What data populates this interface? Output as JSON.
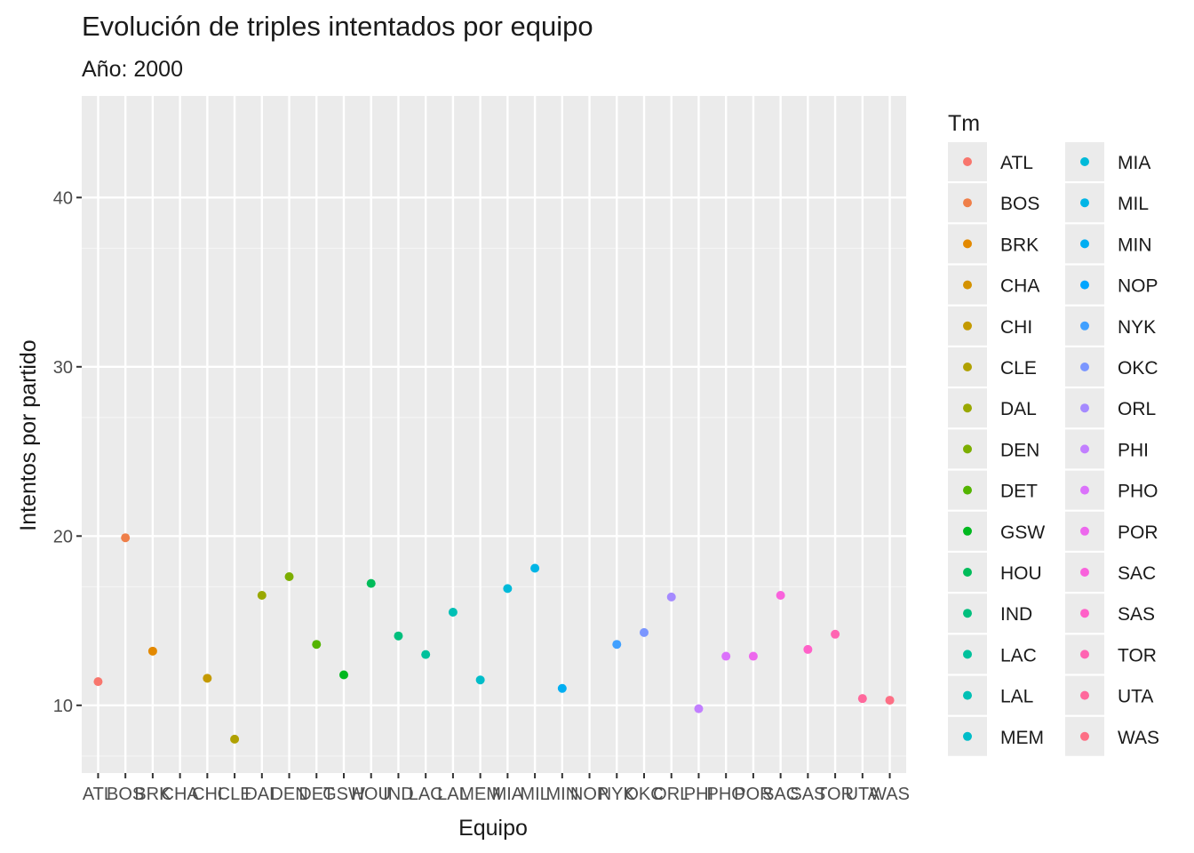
{
  "chart_data": {
    "type": "scatter",
    "title": "Evolución de triples intentados por equipo",
    "subtitle": "Año: 2000",
    "xlabel": "Equipo",
    "ylabel": "Intentos por partido",
    "ylim": [
      6,
      46
    ],
    "yticks": [
      10,
      20,
      30,
      40
    ],
    "grid": true,
    "legend_title": "Tm",
    "legend_position": "right",
    "categories": [
      "ATL",
      "BOS",
      "BRK",
      "CHA",
      "CHI",
      "CLE",
      "DAL",
      "DEN",
      "DET",
      "GSW",
      "HOU",
      "IND",
      "LAC",
      "LAL",
      "MEM",
      "MIA",
      "MIL",
      "MIN",
      "NOP",
      "NYK",
      "OKC",
      "ORL",
      "PHI",
      "PHO",
      "POR",
      "SAC",
      "SAS",
      "TOR",
      "UTA",
      "WAS"
    ],
    "colors": [
      "#F8766D",
      "#EF7F49",
      "#E38900",
      "#D49200",
      "#C49A00",
      "#B0A100",
      "#99A800",
      "#7CAE00",
      "#53B400",
      "#00B81F",
      "#00BC5A",
      "#00BF7D",
      "#00C19C",
      "#00C0B5",
      "#00BDC9",
      "#00BAD9",
      "#00B5E6",
      "#00AEF2",
      "#00A5FF",
      "#40A0FF",
      "#7B96FF",
      "#A58AFF",
      "#C27FFF",
      "#DB72FB",
      "#ED68ED",
      "#F962DC",
      "#FF61C8",
      "#FF64B2",
      "#FF689C",
      "#FD6F85"
    ],
    "points": [
      {
        "team": "ATL",
        "y": 11.4
      },
      {
        "team": "BOS",
        "y": 19.9
      },
      {
        "team": "BRK",
        "y": 13.2
      },
      {
        "team": "CHI",
        "y": 11.6
      },
      {
        "team": "CLE",
        "y": 8.0
      },
      {
        "team": "DAL",
        "y": 16.5
      },
      {
        "team": "DEN",
        "y": 17.6
      },
      {
        "team": "DET",
        "y": 13.6
      },
      {
        "team": "GSW",
        "y": 11.8
      },
      {
        "team": "HOU",
        "y": 17.2
      },
      {
        "team": "IND",
        "y": 14.1
      },
      {
        "team": "LAC",
        "y": 13.0
      },
      {
        "team": "LAL",
        "y": 15.5
      },
      {
        "team": "MEM",
        "y": 11.5
      },
      {
        "team": "MIA",
        "y": 16.9
      },
      {
        "team": "MIL",
        "y": 18.1
      },
      {
        "team": "MIN",
        "y": 11.0
      },
      {
        "team": "NYK",
        "y": 13.6
      },
      {
        "team": "OKC",
        "y": 14.3
      },
      {
        "team": "ORL",
        "y": 16.4
      },
      {
        "team": "PHI",
        "y": 9.8
      },
      {
        "team": "PHO",
        "y": 12.9
      },
      {
        "team": "POR",
        "y": 12.9
      },
      {
        "team": "SAC",
        "y": 16.5
      },
      {
        "team": "SAS",
        "y": 13.3
      },
      {
        "team": "TOR",
        "y": 14.2
      },
      {
        "team": "UTA",
        "y": 10.4
      },
      {
        "team": "WAS",
        "y": 10.3
      }
    ]
  }
}
